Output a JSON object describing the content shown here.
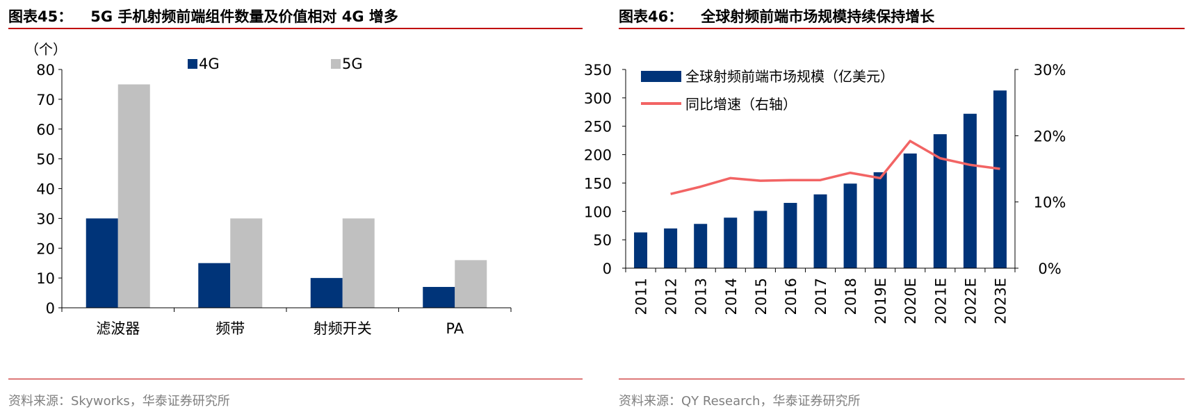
{
  "left": {
    "figure_no": "图表45：",
    "title": "5G 手机射频前端组件数量及价值相对 4G 增多",
    "source": "资料来源：Skyworks，华泰证券研究所",
    "colors": {
      "s4g": "#003479",
      "s5g": "#c0c0c0",
      "rule": "#c00000"
    },
    "chart_data": {
      "type": "bar",
      "unit_label": "（个）",
      "categories": [
        "滤波器",
        "频带",
        "射频开关",
        "PA"
      ],
      "series": [
        {
          "name": "4G",
          "values": [
            30,
            15,
            10,
            7
          ]
        },
        {
          "name": "5G",
          "values": [
            75,
            30,
            30,
            16
          ]
        }
      ],
      "ylim": [
        0,
        80
      ],
      "yticks": [
        "0",
        "10",
        "20",
        "30",
        "40",
        "50",
        "60",
        "70",
        "80"
      ],
      "legend_position": "top",
      "grid": false
    }
  },
  "right": {
    "figure_no": "图表46：",
    "title": "全球射频前端市场规模持续保持增长",
    "source": "资料来源：QY Research，华泰证券研究所",
    "colors": {
      "bar": "#003479",
      "line": "#f26464",
      "rule": "#c00000"
    },
    "chart_data": {
      "type": "bar",
      "categories": [
        "2011",
        "2012",
        "2013",
        "2014",
        "2015",
        "2016",
        "2017",
        "2018",
        "2019E",
        "2020E",
        "2021E",
        "2022E",
        "2023E"
      ],
      "series": [
        {
          "name": "全球射频前端市场规模（亿美元）",
          "type": "bar",
          "axis": "left",
          "values": [
            63,
            70,
            78,
            89,
            101,
            115,
            130,
            149,
            169,
            202,
            236,
            272,
            313
          ]
        },
        {
          "name": "同比增速（右轴）",
          "type": "line",
          "axis": "right",
          "values": [
            null,
            11.2,
            12.3,
            13.6,
            13.2,
            13.3,
            13.3,
            14.4,
            13.6,
            19.2,
            16.6,
            15.6,
            15.0
          ]
        }
      ],
      "ylim_left": [
        0,
        350
      ],
      "yticks_left": [
        "0",
        "50",
        "100",
        "150",
        "200",
        "250",
        "300",
        "350"
      ],
      "ylim_right": [
        0,
        30
      ],
      "yticks_right": [
        "0%",
        "10%",
        "20%",
        "30%"
      ],
      "legend_position": "top-left",
      "grid": false
    }
  }
}
